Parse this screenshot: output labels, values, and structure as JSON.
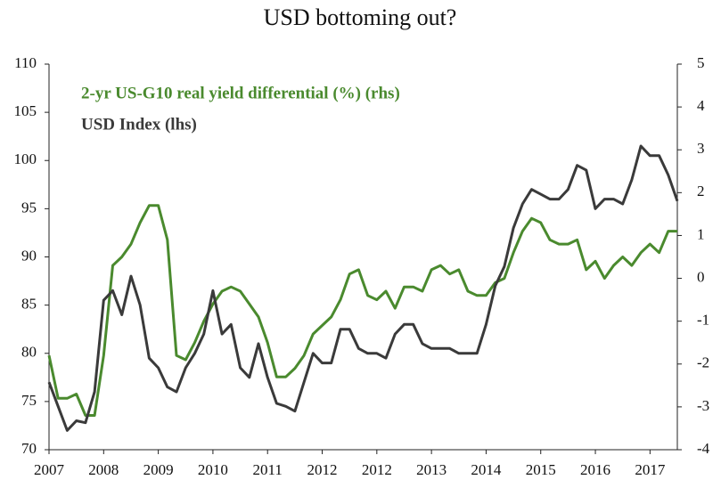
{
  "chart_data": {
    "type": "line",
    "title": "USD bottoming out?",
    "categories": [
      "2007",
      null,
      null,
      null,
      null,
      null,
      "2008",
      null,
      null,
      null,
      null,
      null,
      "2009",
      null,
      null,
      null,
      null,
      null,
      "2010",
      null,
      null,
      null,
      null,
      null,
      "2011",
      null,
      null,
      null,
      null,
      null,
      "2012",
      null,
      null,
      null,
      null,
      null,
      "2012",
      null,
      null,
      null,
      null,
      null,
      "2013",
      null,
      null,
      null,
      null,
      null,
      "2014",
      null,
      null,
      null,
      null,
      null,
      "2015",
      null,
      null,
      null,
      null,
      null,
      "2016",
      null,
      null,
      null,
      null,
      null,
      "2017",
      null,
      null,
      null
    ],
    "series": [
      {
        "name": "2-yr US-G10 real yield differential (%) (rhs)",
        "color": "#4a8a2e",
        "axis": "y2",
        "values": [
          -1.8,
          -2.8,
          -2.8,
          -2.7,
          -3.2,
          -3.2,
          -1.8,
          0.3,
          0.5,
          0.8,
          1.3,
          1.7,
          1.7,
          0.9,
          -1.8,
          -1.9,
          -1.5,
          -1.0,
          -0.6,
          -0.3,
          -0.2,
          -0.3,
          -0.6,
          -0.9,
          -1.5,
          -2.3,
          -2.3,
          -2.1,
          -1.8,
          -1.3,
          -1.1,
          -0.9,
          -0.5,
          0.1,
          0.2,
          -0.4,
          -0.5,
          -0.3,
          -0.7,
          -0.2,
          -0.2,
          -0.3,
          0.2,
          0.3,
          0.1,
          0.2,
          -0.3,
          -0.4,
          -0.4,
          -0.1,
          0.0,
          0.6,
          1.1,
          1.4,
          1.3,
          0.9,
          0.8,
          0.8,
          0.9,
          0.2,
          0.4,
          0.0,
          0.3,
          0.5,
          0.3,
          0.6,
          0.8,
          0.6,
          1.1,
          1.1
        ]
      },
      {
        "name": "USD Index (lhs)",
        "color": "#3a3a3a",
        "values": [
          77,
          74.5,
          72,
          73,
          72.8,
          76,
          85.5,
          86.5,
          84,
          88,
          85,
          79.5,
          78.5,
          76.5,
          76,
          78.5,
          80,
          82,
          86.5,
          82,
          83,
          78.5,
          77.5,
          81,
          77.5,
          74.8,
          74.5,
          74,
          77,
          80,
          79,
          79,
          82.5,
          82.5,
          80.5,
          80,
          80,
          79.5,
          82,
          83,
          83,
          81,
          80.5,
          80.5,
          80.5,
          80,
          80,
          80,
          83,
          87,
          89,
          93,
          95.5,
          97,
          96.5,
          96,
          96,
          97,
          99.5,
          99,
          95,
          96,
          96,
          95.5,
          98,
          101.5,
          100.5,
          100.5,
          98.5,
          95.8
        ]
      }
    ],
    "ylim": [
      70,
      110
    ],
    "yticks": [
      70,
      75,
      80,
      85,
      90,
      95,
      100,
      105,
      110
    ],
    "y2lim": [
      -4,
      5
    ],
    "y2ticks": [
      -4,
      -3,
      -2,
      -1,
      0,
      1,
      2,
      3,
      4,
      5
    ],
    "legend": "upper left"
  }
}
